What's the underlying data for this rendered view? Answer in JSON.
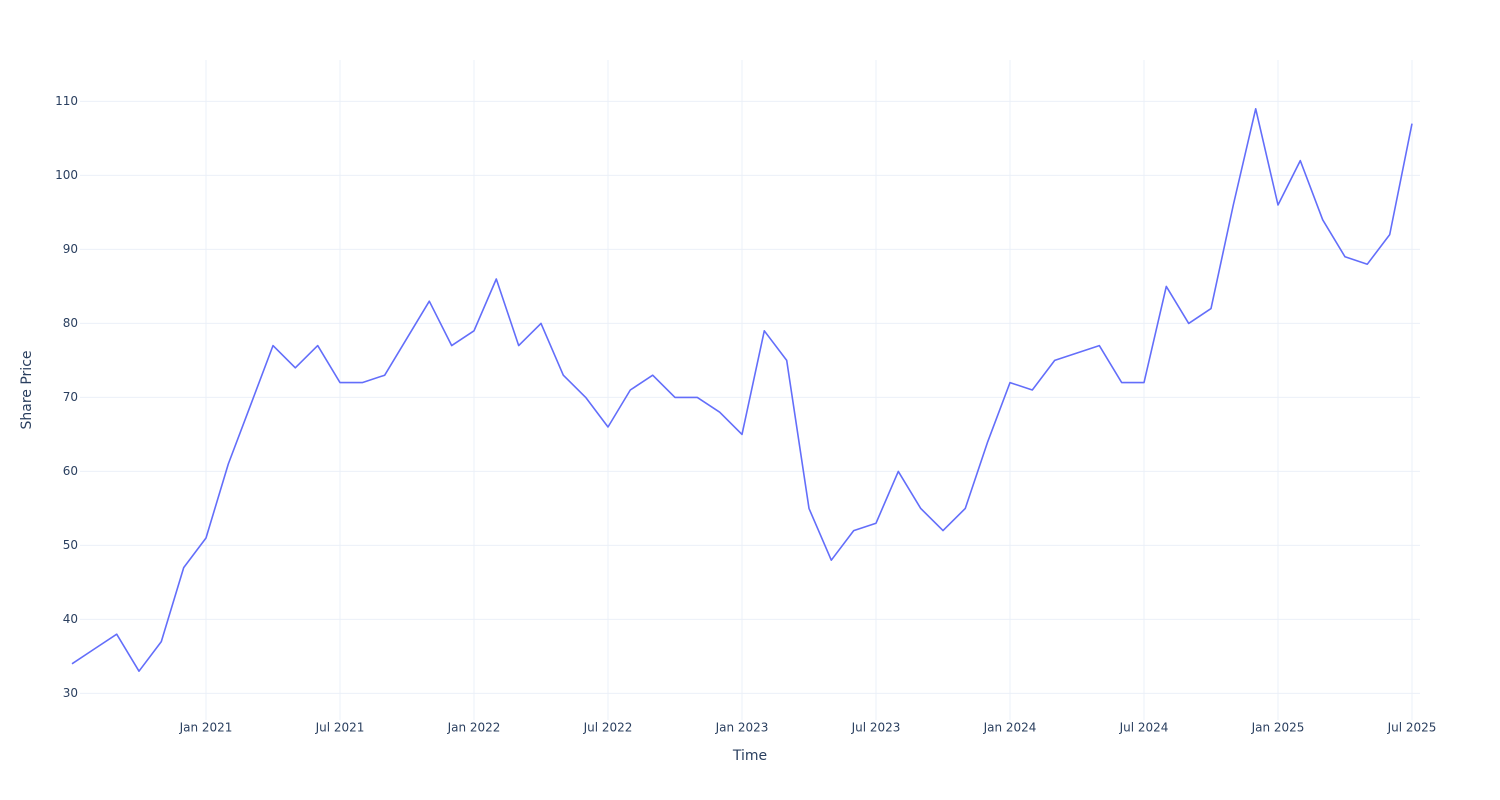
{
  "chart_data": {
    "type": "line",
    "x_label": "Time",
    "y_label": "Share Price",
    "x": [
      "2020-07",
      "2020-08",
      "2020-09",
      "2020-10",
      "2020-11",
      "2020-12",
      "2021-01",
      "2021-02",
      "2021-03",
      "2021-04",
      "2021-05",
      "2021-06",
      "2021-07",
      "2021-08",
      "2021-09",
      "2021-10",
      "2021-11",
      "2021-12",
      "2022-01",
      "2022-02",
      "2022-03",
      "2022-04",
      "2022-05",
      "2022-06",
      "2022-07",
      "2022-08",
      "2022-09",
      "2022-10",
      "2022-11",
      "2022-12",
      "2023-01",
      "2023-02",
      "2023-03",
      "2023-04",
      "2023-05",
      "2023-06",
      "2023-07",
      "2023-08",
      "2023-09",
      "2023-10",
      "2023-11",
      "2023-12",
      "2024-01",
      "2024-02",
      "2024-03",
      "2024-04",
      "2024-05",
      "2024-06",
      "2024-07",
      "2024-08",
      "2024-09",
      "2024-10",
      "2024-11",
      "2024-12",
      "2025-01",
      "2025-02",
      "2025-03",
      "2025-04",
      "2025-05",
      "2025-06",
      "2025-07"
    ],
    "series": [
      {
        "name": "Share Price",
        "color": "#636efa",
        "values": [
          34,
          36,
          38,
          33,
          37,
          47,
          51,
          61,
          69,
          77,
          74,
          77,
          72,
          72,
          73,
          78,
          83,
          77,
          79,
          86,
          77,
          80,
          73,
          70,
          66,
          71,
          73,
          70,
          70,
          68,
          65,
          79,
          75,
          55,
          48,
          52,
          53,
          60,
          55,
          52,
          55,
          64,
          72,
          71,
          75,
          76,
          77,
          72,
          72,
          85,
          80,
          82,
          96,
          109,
          96,
          102,
          94,
          89,
          88,
          92,
          107
        ]
      }
    ],
    "xlim": [
      "2020-07",
      "2025-07"
    ],
    "xticks": [
      {
        "value": "2021-01",
        "label": "Jan 2021"
      },
      {
        "value": "2021-07",
        "label": "Jul 2021"
      },
      {
        "value": "2022-01",
        "label": "Jan 2022"
      },
      {
        "value": "2022-07",
        "label": "Jul 2022"
      },
      {
        "value": "2023-01",
        "label": "Jan 2023"
      },
      {
        "value": "2023-07",
        "label": "Jul 2023"
      },
      {
        "value": "2024-01",
        "label": "Jan 2024"
      },
      {
        "value": "2024-07",
        "label": "Jul 2024"
      },
      {
        "value": "2025-01",
        "label": "Jan 2025"
      },
      {
        "value": "2025-07",
        "label": "Jul 2025"
      }
    ],
    "ylim": [
      26.4,
      115.6
    ],
    "yticks": [
      30,
      40,
      50,
      60,
      70,
      80,
      90,
      100,
      110
    ],
    "grid": true
  }
}
